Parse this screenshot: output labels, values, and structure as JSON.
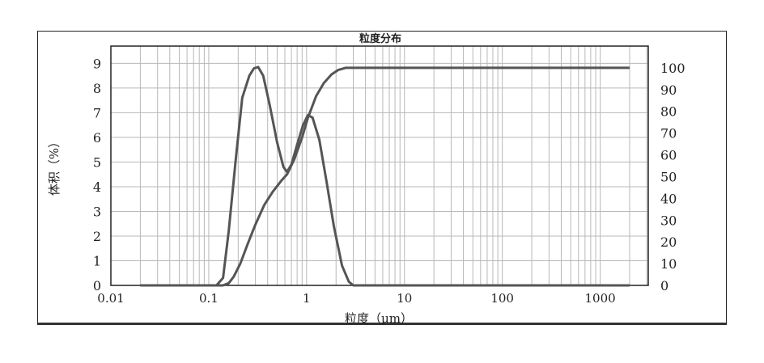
{
  "chart_data": {
    "type": "line",
    "title": "粒度分布",
    "xlabel": "粒度（μm）",
    "ylabel": "体积（%）",
    "x_scale": "log",
    "xlim": [
      0.01,
      3100
    ],
    "ylim": [
      0,
      9.7
    ],
    "y2lim": [
      0,
      110
    ],
    "grid": true,
    "x_ticks": [
      "0.01",
      "0.1",
      "1",
      "10",
      "100",
      "1000"
    ],
    "y_ticks": [
      "0",
      "1",
      "2",
      "3",
      "4",
      "5",
      "6",
      "7",
      "8",
      "9"
    ],
    "y2_ticks": [
      "0",
      "10",
      "20",
      "30",
      "40",
      "50",
      "60",
      "70",
      "80",
      "90",
      "100"
    ],
    "line_color": "#555555",
    "series": [
      {
        "axis": "left",
        "x": [
          0.02,
          0.12,
          0.14,
          0.16,
          0.19,
          0.22,
          0.26,
          0.29,
          0.32,
          0.36,
          0.42,
          0.5,
          0.58,
          0.63,
          0.7,
          0.8,
          0.92,
          1.03,
          1.15,
          1.35,
          1.6,
          1.9,
          2.3,
          2.7,
          3.0,
          2000
        ],
        "y": [
          0,
          0,
          0.3,
          2.2,
          5.2,
          7.6,
          8.5,
          8.8,
          8.85,
          8.5,
          7.3,
          5.8,
          4.8,
          4.6,
          4.9,
          5.7,
          6.5,
          6.9,
          6.8,
          5.9,
          4.2,
          2.4,
          0.8,
          0.15,
          0,
          0
        ]
      },
      {
        "axis": "right",
        "x": [
          0.02,
          0.14,
          0.16,
          0.18,
          0.21,
          0.25,
          0.3,
          0.37,
          0.45,
          0.55,
          0.63,
          0.75,
          0.9,
          1.03,
          1.25,
          1.5,
          1.8,
          2.1,
          2.5,
          2000
        ],
        "y": [
          0,
          0,
          1,
          4,
          10,
          19,
          28,
          37,
          43,
          48,
          51,
          58,
          68,
          77,
          87,
          93,
          97,
          99,
          100,
          100
        ]
      }
    ]
  }
}
